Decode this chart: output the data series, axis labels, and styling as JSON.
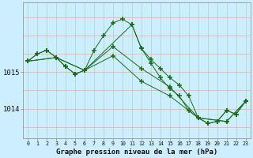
{
  "title": "Graphe pression niveau de la mer (hPa)",
  "bg_color": "#cceeff",
  "grid_color_v": "#aaddcc",
  "grid_color_h": "#ffaaaa",
  "line_color": "#1a6b1a",
  "marker": "+",
  "xlim": [
    -0.5,
    23.5
  ],
  "xticks": [
    0,
    1,
    2,
    3,
    4,
    5,
    6,
    7,
    8,
    9,
    10,
    11,
    12,
    13,
    14,
    15,
    16,
    17,
    18,
    19,
    20,
    21,
    22,
    23
  ],
  "ytick_positions": [
    1014,
    1015
  ],
  "ylim": [
    1013.2,
    1016.9
  ],
  "series": [
    {
      "x": [
        0,
        1,
        2,
        3,
        4,
        5,
        6,
        7,
        8,
        9,
        10,
        11,
        12,
        13,
        14,
        15,
        16,
        17,
        18,
        19,
        20,
        21,
        22,
        23
      ],
      "y": [
        1015.3,
        1015.5,
        1015.6,
        1015.4,
        1015.15,
        1014.95,
        1015.05,
        1015.6,
        1016.0,
        1016.35,
        1016.45,
        1016.3,
        1015.65,
        1015.35,
        1015.1,
        1014.85,
        1014.65,
        1014.35,
        1013.75,
        1013.6,
        1013.65,
        1013.95,
        1013.85,
        1014.2
      ]
    },
    {
      "x": [
        0,
        1,
        2,
        3,
        4,
        5,
        6,
        11,
        12,
        13,
        14,
        15,
        16,
        17,
        18,
        19,
        20,
        21,
        22,
        23
      ],
      "y": [
        1015.3,
        1015.5,
        1015.6,
        1015.4,
        1015.15,
        1014.95,
        1015.05,
        1016.3,
        1015.65,
        1015.25,
        1014.85,
        1014.55,
        1014.35,
        1013.95,
        1013.75,
        1013.6,
        1013.65,
        1013.95,
        1013.85,
        1014.2
      ]
    },
    {
      "x": [
        0,
        3,
        6,
        9,
        12,
        15,
        18,
        21,
        23
      ],
      "y": [
        1015.3,
        1015.4,
        1015.05,
        1015.7,
        1015.1,
        1014.6,
        1013.75,
        1013.65,
        1014.2
      ]
    },
    {
      "x": [
        0,
        3,
        6,
        9,
        12,
        15,
        18,
        21,
        23
      ],
      "y": [
        1015.3,
        1015.4,
        1015.05,
        1015.45,
        1014.75,
        1014.35,
        1013.75,
        1013.65,
        1014.2
      ]
    }
  ],
  "y_grid_step": 0.5,
  "xlabel_fontsize": 6.5,
  "ytick_fontsize": 6.5,
  "xtick_fontsize": 4.8
}
